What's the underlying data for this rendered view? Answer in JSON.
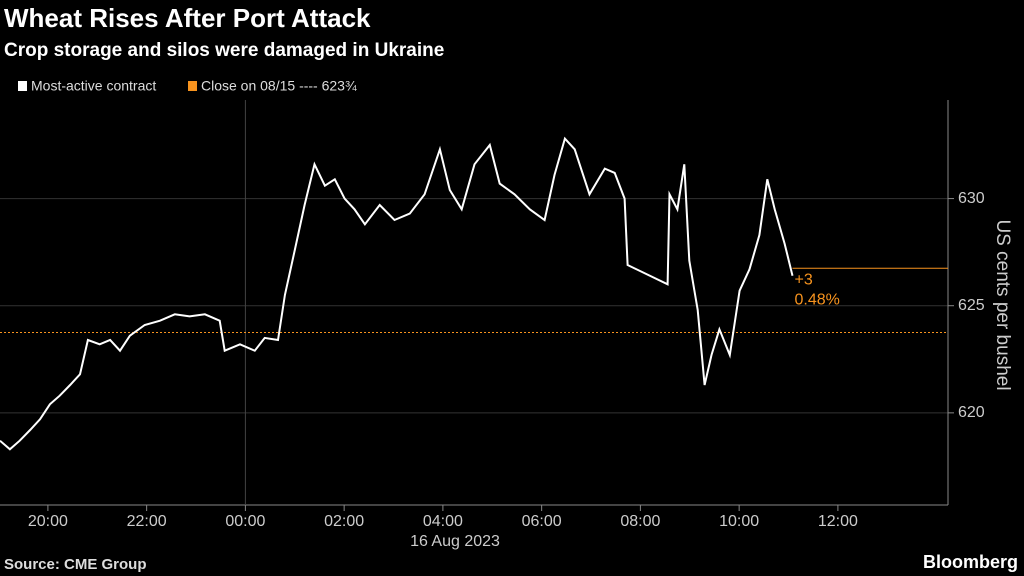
{
  "chart_data": {
    "type": "line",
    "title": "Wheat Rises After Port Attack",
    "subtitle": "Crop storage and silos were damaged in Ukraine",
    "y_label": "US cents per bushel",
    "x_sublabel": "16 Aug 2023",
    "source": "Source: CME Group",
    "brand": "Bloomberg",
    "series": [
      {
        "name": "Most-active contract",
        "color": "#ffffff",
        "x": [
          -4.97,
          -4.77,
          -4.57,
          -4.36,
          -4.16,
          -3.96,
          -3.76,
          -3.55,
          -3.35,
          -3.19,
          -2.95,
          -2.74,
          -2.54,
          -2.34,
          -2.04,
          -1.73,
          -1.43,
          -1.13,
          -0.82,
          -0.52,
          -0.42,
          -0.11,
          0.19,
          0.39,
          0.66,
          0.8,
          1.0,
          1.2,
          1.4,
          1.61,
          1.81,
          2.01,
          2.21,
          2.42,
          2.72,
          3.02,
          3.33,
          3.63,
          3.94,
          4.14,
          4.38,
          4.64,
          4.95,
          5.15,
          5.45,
          5.76,
          6.06,
          6.26,
          6.47,
          6.67,
          6.97,
          7.28,
          7.48,
          7.68,
          7.74,
          8.55,
          8.59,
          8.75,
          8.89,
          8.99,
          9.16,
          9.3,
          9.44,
          9.6,
          9.81,
          10.01,
          10.21,
          10.41,
          10.57,
          10.72,
          10.92,
          11.08
        ],
        "values": [
          618.7,
          618.3,
          618.7,
          619.2,
          619.7,
          620.4,
          620.8,
          621.3,
          621.8,
          623.4,
          623.2,
          623.4,
          622.9,
          623.6,
          624.1,
          624.3,
          624.6,
          624.5,
          624.6,
          624.3,
          622.9,
          623.2,
          622.9,
          623.5,
          623.4,
          625.5,
          627.6,
          629.7,
          631.6,
          630.6,
          630.9,
          630.0,
          629.5,
          628.8,
          629.7,
          629.0,
          629.3,
          630.2,
          632.3,
          630.4,
          629.5,
          631.6,
          632.5,
          630.7,
          630.2,
          629.5,
          629.0,
          631.1,
          632.8,
          632.3,
          630.2,
          631.4,
          631.2,
          630.0,
          626.9,
          626.0,
          630.2,
          629.5,
          631.6,
          627.1,
          624.8,
          621.3,
          622.7,
          623.9,
          622.7,
          625.7,
          626.7,
          628.3,
          630.9,
          629.5,
          627.9,
          626.4
        ]
      }
    ],
    "reference_line": {
      "label": "Close on 08/15 ---- 623¾",
      "value": 623.75,
      "color": "#f7931e"
    },
    "last_line": {
      "value": 626.75,
      "color": "#f7931e"
    },
    "annotations": [
      "+3",
      "0.48%"
    ],
    "xlim": [
      -4.97,
      14.23
    ],
    "xticks": [
      {
        "value": -4,
        "label": "20:00"
      },
      {
        "value": -2,
        "label": "22:00"
      },
      {
        "value": 0,
        "label": "00:00"
      },
      {
        "value": 2,
        "label": "02:00"
      },
      {
        "value": 4,
        "label": "04:00"
      },
      {
        "value": 6,
        "label": "06:00"
      },
      {
        "value": 8,
        "label": "08:00"
      },
      {
        "value": 10,
        "label": "10:00"
      },
      {
        "value": 12,
        "label": "12:00"
      }
    ],
    "ylim": [
      615.7,
      634.6
    ],
    "yticks": [
      620,
      625,
      630
    ],
    "grid": true
  }
}
